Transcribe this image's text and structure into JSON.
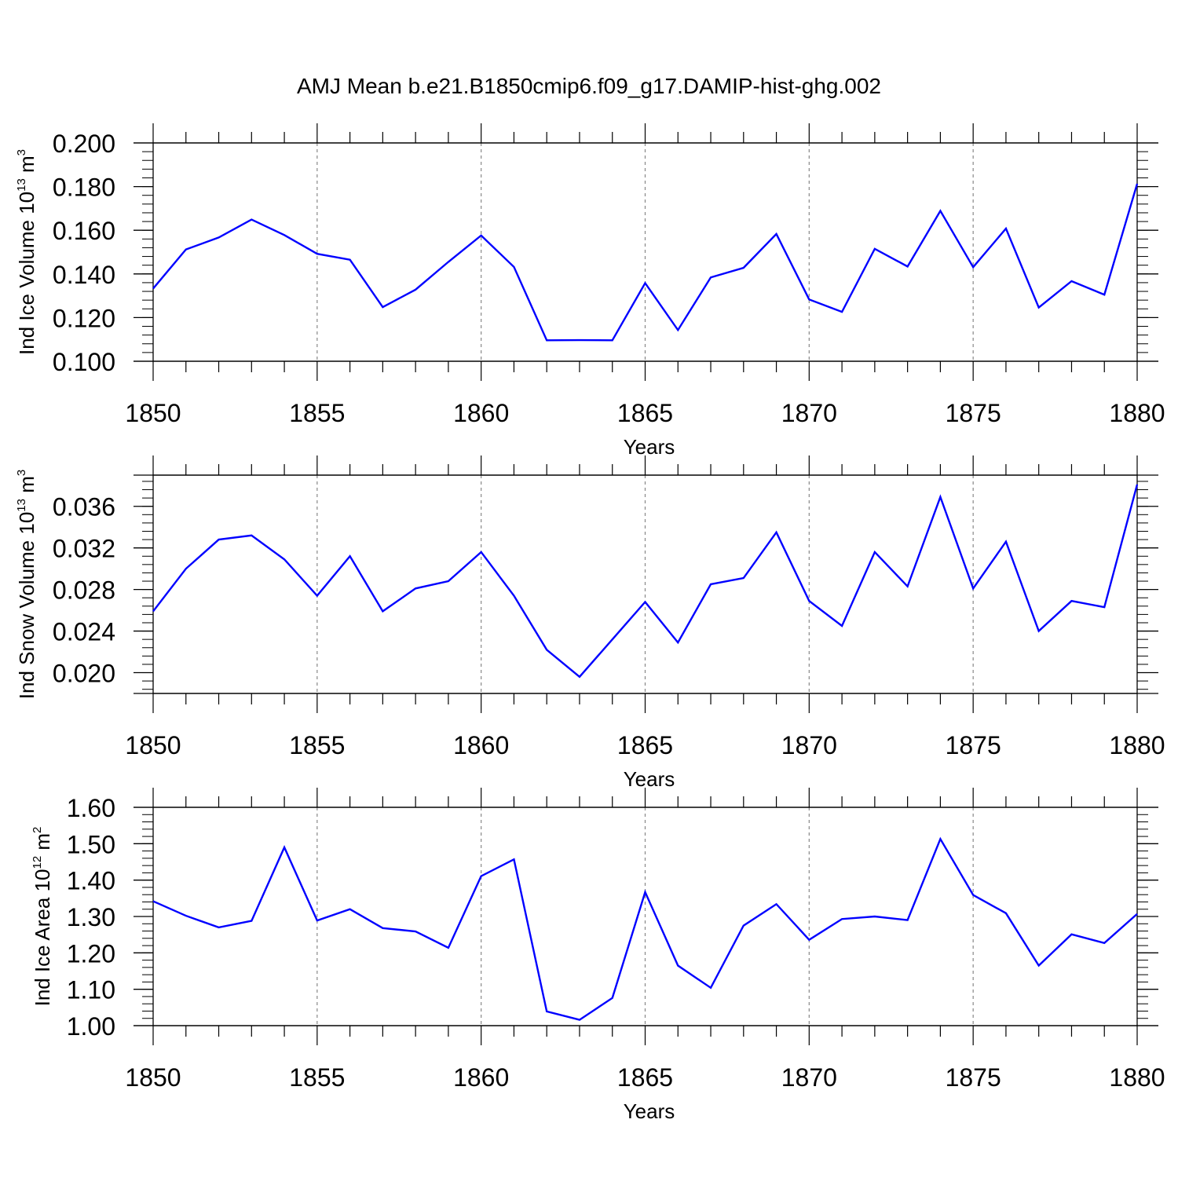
{
  "title": "AMJ Mean b.e21.B1850cmip6.f09_g17.DAMIP-hist-ghg.002",
  "colors": {
    "series": "#0000ff",
    "axis": "#000000",
    "grid": "#888888"
  },
  "chart_data": [
    {
      "type": "line",
      "xlabel": "Years",
      "ylabel": {
        "text": "Ind Ice Volume 10",
        "sup": "13",
        "unit": " m",
        "unit_sup": "3"
      },
      "xlim": [
        1850,
        1880
      ],
      "ylim": [
        0.1,
        0.2
      ],
      "xticks": [
        1850,
        1855,
        1860,
        1865,
        1870,
        1875,
        1880
      ],
      "yticks": [
        "0.100",
        "0.120",
        "0.140",
        "0.160",
        "0.180",
        "0.200"
      ],
      "ytick_values": [
        0.1,
        0.12,
        0.14,
        0.16,
        0.18,
        0.2
      ],
      "x": [
        1850,
        1851,
        1852,
        1853,
        1854,
        1855,
        1856,
        1857,
        1858,
        1859,
        1860,
        1861,
        1862,
        1863,
        1864,
        1865,
        1866,
        1867,
        1868,
        1869,
        1870,
        1871,
        1872,
        1873,
        1874,
        1875,
        1876,
        1877,
        1878,
        1879,
        1880
      ],
      "y": [
        0.1333,
        0.1512,
        0.1567,
        0.1649,
        0.1578,
        0.1492,
        0.1465,
        0.1248,
        0.1328,
        0.1455,
        0.1576,
        0.1432,
        0.1096,
        0.1097,
        0.1096,
        0.1358,
        0.1143,
        0.1384,
        0.1428,
        0.1583,
        0.1283,
        0.1226,
        0.1515,
        0.1434,
        0.1689,
        0.1431,
        0.1608,
        0.1246,
        0.1367,
        0.1305,
        0.1813
      ]
    },
    {
      "type": "line",
      "xlabel": "Years",
      "ylabel": {
        "text": "Ind Snow Volume 10",
        "sup": "13",
        "unit": " m",
        "unit_sup": "3"
      },
      "xlim": [
        1850,
        1880
      ],
      "ylim": [
        0.018,
        0.039
      ],
      "xticks": [
        1850,
        1855,
        1860,
        1865,
        1870,
        1875,
        1880
      ],
      "yticks": [
        "0.020",
        "0.024",
        "0.028",
        "0.032",
        "0.036"
      ],
      "ytick_values": [
        0.02,
        0.024,
        0.028,
        0.032,
        0.036
      ],
      "x": [
        1850,
        1851,
        1852,
        1853,
        1854,
        1855,
        1856,
        1857,
        1858,
        1859,
        1860,
        1861,
        1862,
        1863,
        1864,
        1865,
        1866,
        1867,
        1868,
        1869,
        1870,
        1871,
        1872,
        1873,
        1874,
        1875,
        1876,
        1877,
        1878,
        1879,
        1880
      ],
      "y": [
        0.0259,
        0.03,
        0.0328,
        0.0332,
        0.0309,
        0.0274,
        0.0312,
        0.0259,
        0.0281,
        0.0288,
        0.0316,
        0.0274,
        0.0222,
        0.0196,
        0.0232,
        0.0268,
        0.0229,
        0.0285,
        0.0291,
        0.0335,
        0.0269,
        0.0245,
        0.0316,
        0.0283,
        0.0369,
        0.0281,
        0.0326,
        0.024,
        0.0269,
        0.0263,
        0.0381
      ]
    },
    {
      "type": "line",
      "xlabel": "Years",
      "ylabel": {
        "text": "Ind Ice Area 10",
        "sup": "12",
        "unit": " m",
        "unit_sup": "2"
      },
      "xlim": [
        1850,
        1880
      ],
      "ylim": [
        1.0,
        1.6
      ],
      "xticks": [
        1850,
        1855,
        1860,
        1865,
        1870,
        1875,
        1880
      ],
      "yticks": [
        "1.00",
        "1.10",
        "1.20",
        "1.30",
        "1.40",
        "1.50",
        "1.60"
      ],
      "ytick_values": [
        1.0,
        1.1,
        1.2,
        1.3,
        1.4,
        1.5,
        1.6
      ],
      "x": [
        1850,
        1851,
        1852,
        1853,
        1854,
        1855,
        1856,
        1857,
        1858,
        1859,
        1860,
        1861,
        1862,
        1863,
        1864,
        1865,
        1866,
        1867,
        1868,
        1869,
        1870,
        1871,
        1872,
        1873,
        1874,
        1875,
        1876,
        1877,
        1878,
        1879,
        1880
      ],
      "y": [
        1.342,
        1.302,
        1.27,
        1.288,
        1.49,
        1.289,
        1.32,
        1.268,
        1.259,
        1.214,
        1.411,
        1.457,
        1.039,
        1.016,
        1.076,
        1.367,
        1.165,
        1.104,
        1.275,
        1.334,
        1.236,
        1.293,
        1.3,
        1.29,
        1.513,
        1.359,
        1.309,
        1.165,
        1.251,
        1.227,
        1.307
      ]
    }
  ]
}
